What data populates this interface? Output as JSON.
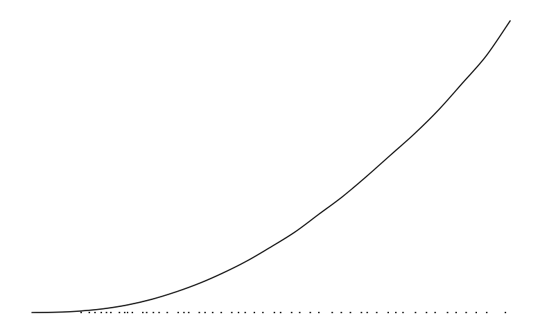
{
  "chart_data": {
    "type": "line",
    "title": "",
    "xlabel": "",
    "ylabel": "",
    "grid": false,
    "legend": false,
    "axes_visible": false,
    "xlim": [
      0,
      1
    ],
    "ylim": [
      0,
      1
    ],
    "line_color": "#000000",
    "series": [
      {
        "x": [
          0.0,
          0.05,
          0.1,
          0.15,
          0.2,
          0.25,
          0.3,
          0.35,
          0.4,
          0.45,
          0.5,
          0.55,
          0.6,
          0.65,
          0.7,
          0.75,
          0.8,
          0.85,
          0.9,
          0.95,
          1.0
        ],
        "y": [
          0.0,
          0.001,
          0.005,
          0.013,
          0.026,
          0.045,
          0.07,
          0.1,
          0.136,
          0.177,
          0.225,
          0.276,
          0.337,
          0.398,
          0.467,
          0.54,
          0.613,
          0.694,
          0.786,
          0.88,
          1.0
        ]
      }
    ],
    "baseline_markers": {
      "color": "#000000",
      "x": [
        0.103,
        0.12,
        0.132,
        0.145,
        0.156,
        0.165,
        0.183,
        0.194,
        0.2,
        0.21,
        0.232,
        0.24,
        0.254,
        0.266,
        0.283,
        0.306,
        0.318,
        0.328,
        0.35,
        0.362,
        0.378,
        0.396,
        0.418,
        0.432,
        0.446,
        0.465,
        0.483,
        0.507,
        0.52,
        0.543,
        0.56,
        0.582,
        0.6,
        0.628,
        0.647,
        0.666,
        0.689,
        0.701,
        0.721,
        0.745,
        0.761,
        0.776,
        0.802,
        0.825,
        0.843,
        0.869,
        0.887,
        0.908,
        0.929,
        0.951,
        0.99
      ]
    }
  }
}
